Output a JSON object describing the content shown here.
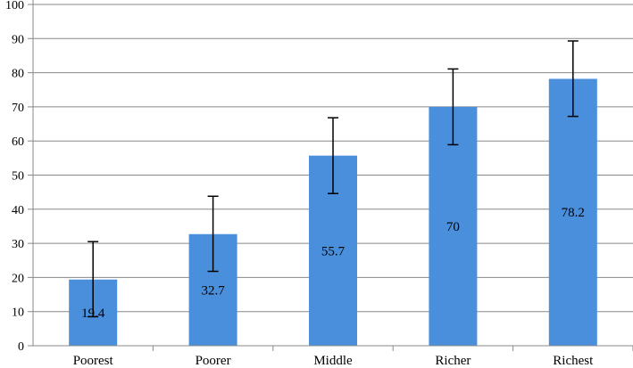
{
  "chart_data": {
    "type": "bar",
    "categories": [
      "Poorest",
      "Poorer",
      "Middle",
      "Richer",
      "Richest"
    ],
    "values": [
      19.4,
      32.7,
      55.7,
      70,
      78.2
    ],
    "error_low": [
      8.5,
      21.8,
      44.6,
      58.9,
      67.2
    ],
    "error_high": [
      30.5,
      43.8,
      66.8,
      81.1,
      89.3
    ],
    "data_labels": [
      "19.4",
      "32.7",
      "55.7",
      "70",
      "78.2"
    ],
    "ylim": [
      0,
      100
    ],
    "yticks": [
      0,
      10,
      20,
      30,
      40,
      50,
      60,
      70,
      80,
      90,
      100
    ],
    "title": "",
    "xlabel": "",
    "ylabel": "",
    "grid": true,
    "legend": "none",
    "bar_color": "#4a8fdc",
    "gridline_color": "#888888",
    "errorbar_color": "#000000"
  }
}
